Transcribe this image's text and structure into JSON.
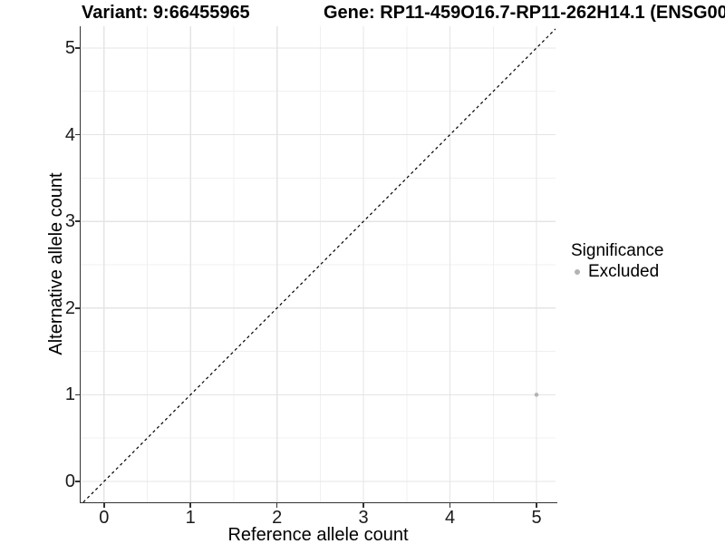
{
  "header": {
    "variant_title": "Variant: 9:66455965",
    "gene_title": "Gene: RP11-459O16.7-RP11-262H14.1 (ENSG00"
  },
  "chart_data": {
    "type": "scatter",
    "xlabel": "Reference allele count",
    "ylabel": "Alternative allele count",
    "xlim": [
      -0.27,
      5.22
    ],
    "ylim": [
      -0.24,
      5.25
    ],
    "x_ticks": [
      0,
      1,
      2,
      3,
      4,
      5
    ],
    "y_ticks": [
      0,
      1,
      2,
      3,
      4,
      5
    ],
    "minor_ticks_x": [
      0.5,
      1.5,
      2.5,
      3.5,
      4.5
    ],
    "minor_ticks_y": [
      0.5,
      1.5,
      2.5,
      3.5,
      4.5
    ],
    "grid": "major and minor, light gray on white",
    "series": [
      {
        "name": "Excluded",
        "color": "#b3b3b3",
        "points": [
          {
            "x": 5,
            "y": 1
          }
        ]
      }
    ],
    "reference_line": {
      "type": "identity y=x",
      "style": "dashed",
      "color": "#000000"
    },
    "legend": {
      "title": "Significance",
      "position": "right",
      "items": [
        {
          "label": "Excluded",
          "color": "#b3b3b3"
        }
      ]
    }
  },
  "colors": {
    "background": "#ffffff",
    "grid_major": "#e4e4e4",
    "grid_minor": "#f0f0f0",
    "axis": "#333333",
    "point": "#b3b3b3",
    "dashed_line": "#000000"
  }
}
